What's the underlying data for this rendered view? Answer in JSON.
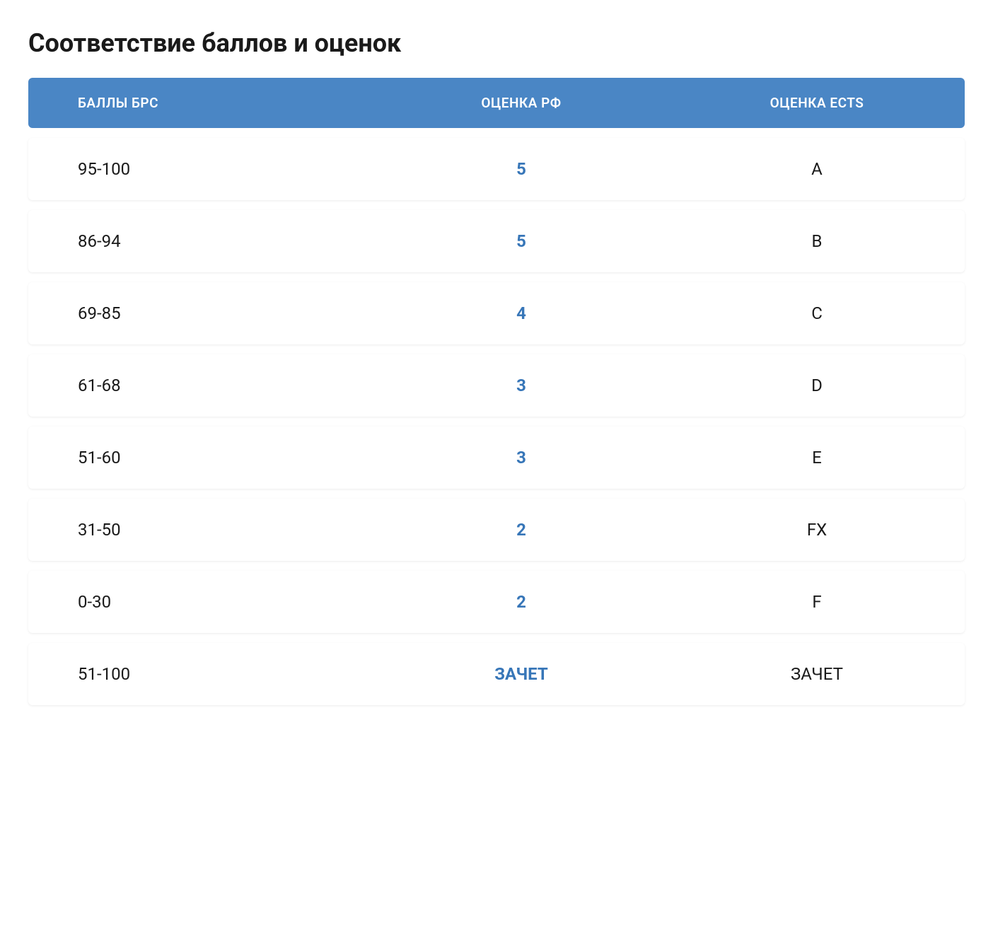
{
  "title": "Соответствие баллов и оценок",
  "table": {
    "type": "table",
    "header_background_color": "#4a86c5",
    "header_text_color": "#ffffff",
    "row_background_color": "#ffffff",
    "accent_color": "#3776b8",
    "text_color": "#1a1a1a",
    "header_fontsize": 19,
    "cell_fontsize": 24,
    "border_radius": 6,
    "row_gap": 14,
    "columns": [
      {
        "label": "БАЛЛЫ БРС",
        "align": "left"
      },
      {
        "label": "ОЦЕНКА РФ",
        "align": "center"
      },
      {
        "label": "ОЦЕНКА ECTS",
        "align": "center"
      }
    ],
    "rows": [
      {
        "points": "95-100",
        "grade_rf": "5",
        "grade_ects": "A"
      },
      {
        "points": "86-94",
        "grade_rf": "5",
        "grade_ects": "B"
      },
      {
        "points": "69-85",
        "grade_rf": "4",
        "grade_ects": "C"
      },
      {
        "points": "61-68",
        "grade_rf": "3",
        "grade_ects": "D"
      },
      {
        "points": "51-60",
        "grade_rf": "3",
        "grade_ects": "E"
      },
      {
        "points": "31-50",
        "grade_rf": "2",
        "grade_ects": "FX"
      },
      {
        "points": "0-30",
        "grade_rf": "2",
        "grade_ects": "F"
      },
      {
        "points": "51-100",
        "grade_rf": "ЗАЧЕТ",
        "grade_ects": "ЗАЧЕТ"
      }
    ]
  }
}
